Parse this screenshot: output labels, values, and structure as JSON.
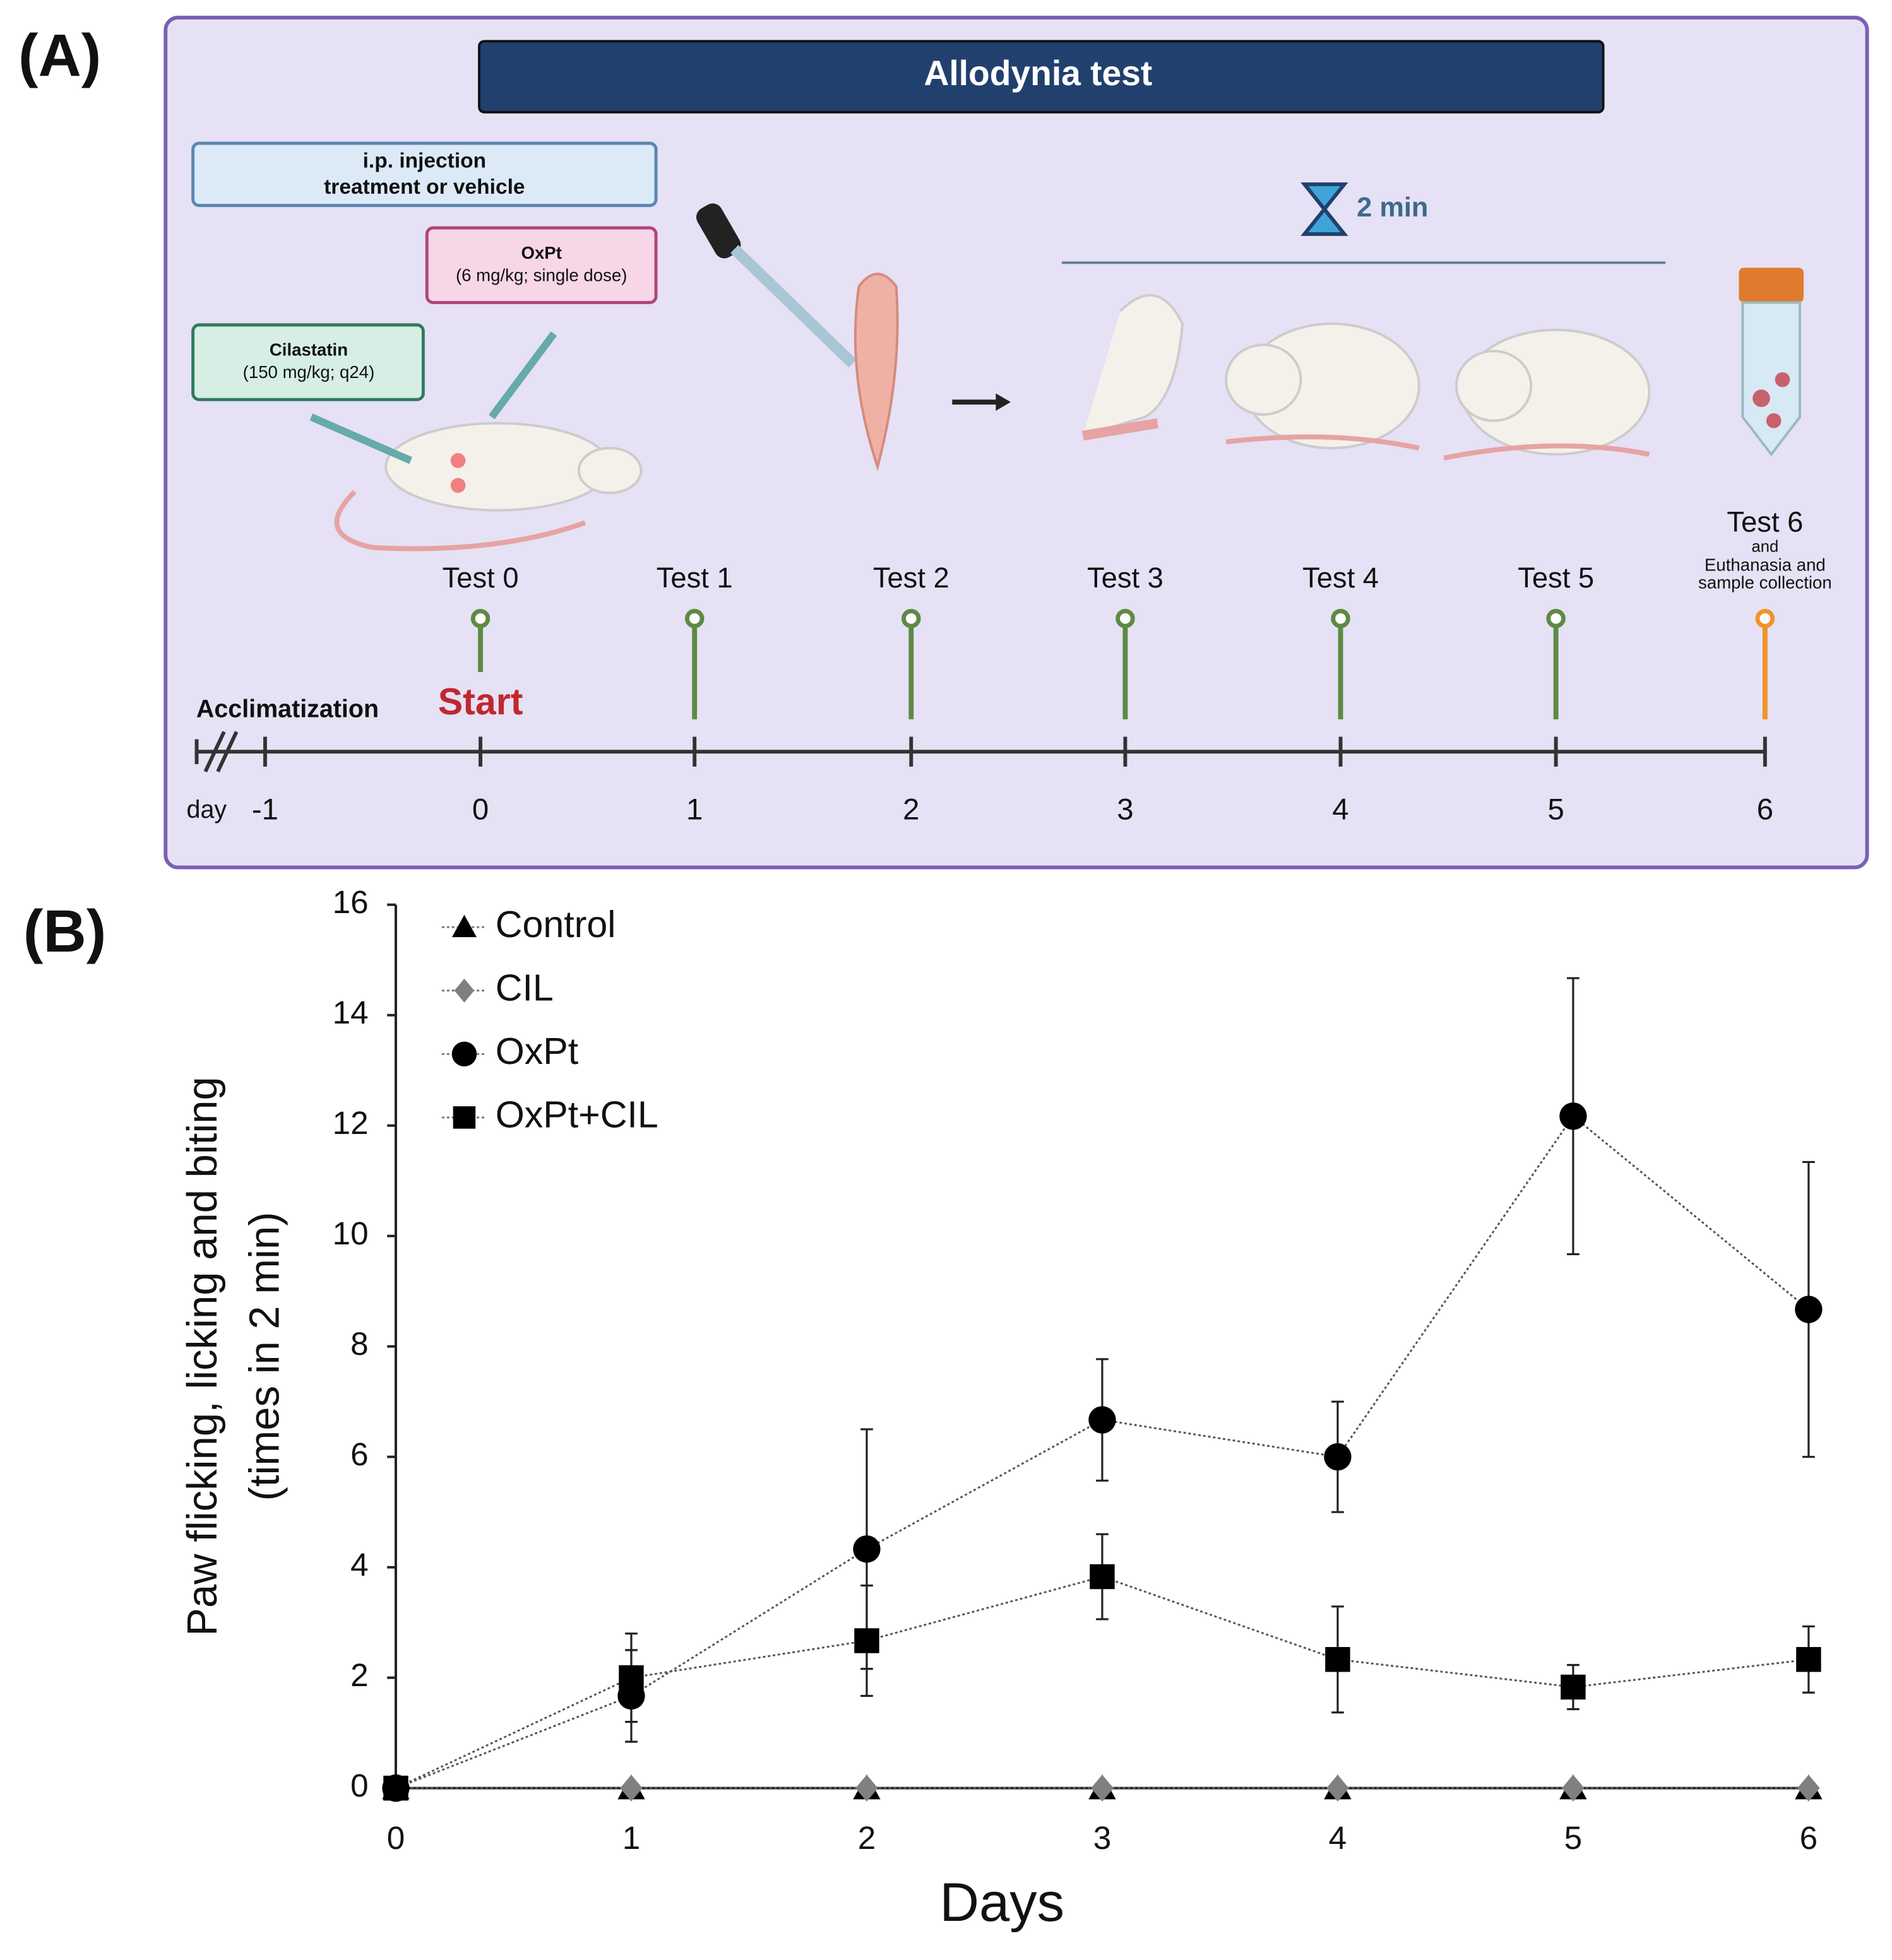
{
  "panel_a": {
    "label": "(A)",
    "title": "Allodynia test",
    "injection": [
      "i.p. injection",
      "treatment or vehicle"
    ],
    "oxpt": [
      "OxPt",
      "(6 mg/kg; single dose)"
    ],
    "cilastatin": [
      "Cilastatin",
      "(150 mg/kg; q24)"
    ],
    "duration": "2 min",
    "tests": [
      "Test 0",
      "Test 1",
      "Test 2",
      "Test 3",
      "Test 4",
      "Test 5"
    ],
    "final_test": [
      "Test 6",
      "and",
      "Euthanasia and",
      "sample collection"
    ],
    "start": "Start",
    "acclimatization": "Acclimatization",
    "day_label": "day",
    "days": [
      "-1",
      "0",
      "1",
      "2",
      "3",
      "4",
      "5",
      "6"
    ]
  },
  "chart_data": {
    "type": "line",
    "label": "(B)",
    "ylabel": [
      "Paw flicking, licking and biting",
      "(times in 2 min)"
    ],
    "xlabel": "Days",
    "x": [
      0,
      1,
      2,
      3,
      4,
      5,
      6
    ],
    "xlim": [
      0,
      6
    ],
    "xticks": [
      0,
      1,
      2,
      3,
      4,
      5,
      6
    ],
    "ylim": [
      0,
      16
    ],
    "yticks": [
      0,
      2,
      4,
      6,
      8,
      10,
      12,
      14,
      16
    ],
    "legend": "upper left",
    "series": [
      {
        "name": "Control",
        "color": "#000000",
        "marker": "triangle",
        "values": [
          0,
          0,
          0,
          0,
          0,
          0,
          0
        ]
      },
      {
        "name": "CIL",
        "color": "#808080",
        "marker": "diamond",
        "values": [
          0,
          0,
          0,
          0,
          0,
          0,
          0
        ]
      },
      {
        "name": "OxPt",
        "color": "#000000",
        "marker": "circle",
        "values": [
          0,
          1.67,
          4.33,
          6.67,
          6.0,
          12.17,
          8.67
        ],
        "errors": [
          0,
          0.83,
          2.17,
          1.1,
          1.0,
          2.5,
          2.67
        ]
      },
      {
        "name": "OxPt+CIL",
        "color": "#000000",
        "marker": "square",
        "values": [
          0,
          2.0,
          2.67,
          3.83,
          2.33,
          1.83,
          2.33
        ],
        "errors": [
          0,
          0.8,
          1.0,
          0.77,
          0.96,
          0.4,
          0.6
        ]
      }
    ]
  }
}
